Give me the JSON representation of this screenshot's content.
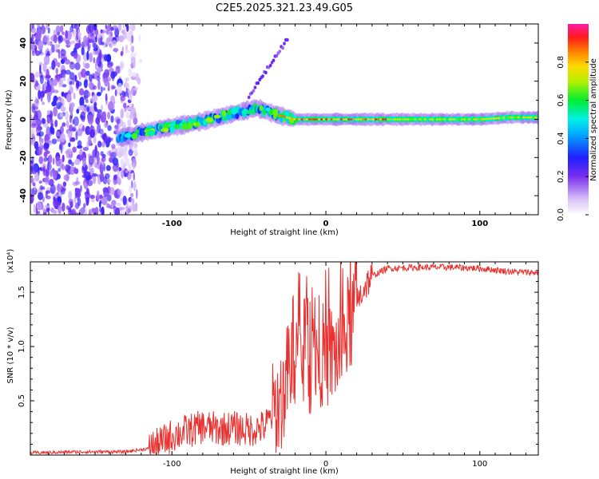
{
  "title": "C2E5.2025.321.23.49.G05",
  "chart_data": [
    {
      "type": "heatmap",
      "title": "C2E5.2025.321.23.49.G05",
      "xlabel": "Height of straight line (km)",
      "ylabel": "Frequency (Hz)",
      "xlim": [
        -192,
        138
      ],
      "ylim": [
        -50,
        50
      ],
      "xticks": [
        -100,
        0,
        100
      ],
      "yticks": [
        -40,
        -20,
        0,
        20,
        40
      ],
      "xtick_labels": [
        "-100",
        "0",
        "100"
      ],
      "ytick_labels": [
        "-40",
        "-20",
        "0",
        "20",
        "40"
      ],
      "colorbar": {
        "label": "Normalized spectral amplitude",
        "range": [
          0,
          1
        ],
        "ticks": [
          0.0,
          0.2,
          0.4,
          0.6,
          0.8
        ],
        "tick_labels": [
          "0.0",
          "0.2",
          "0.4",
          "0.6",
          "0.8"
        ]
      },
      "signal_trace": {
        "x": [
          -135,
          -120,
          -100,
          -80,
          -60,
          -45,
          -38,
          -30,
          -20,
          -10,
          0,
          20,
          50,
          80,
          100,
          120,
          138
        ],
        "y": [
          -10,
          -7,
          -4,
          -1,
          3,
          6,
          4,
          2,
          0,
          0,
          0,
          0,
          0,
          0,
          0,
          1,
          1
        ]
      },
      "noise_region_x": [
        -192,
        -120
      ]
    },
    {
      "type": "line",
      "xlabel": "Height of straight line (km)",
      "ylabel": "SNR (10 * v/v)",
      "scale_label": "(x10⁴)",
      "xlim": [
        -192,
        138
      ],
      "ylim": [
        0,
        1.78
      ],
      "xticks": [
        -100,
        0,
        100
      ],
      "yticks": [
        0.5,
        1.0,
        1.5
      ],
      "xtick_labels": [
        "-100",
        "0",
        "100"
      ],
      "ytick_labels": [
        "0.5",
        "1.0",
        "1.5"
      ],
      "series": [
        {
          "name": "SNR",
          "color": "#e8302e",
          "x": [
            -192,
            -160,
            -130,
            -115,
            -108,
            -100,
            -90,
            -80,
            -70,
            -60,
            -50,
            -40,
            -33,
            -28,
            -24,
            -20,
            -15,
            -10,
            -5,
            0,
            5,
            10,
            15,
            20,
            25,
            30,
            40,
            60,
            80,
            100,
            120,
            138
          ],
          "y": [
            0.02,
            0.03,
            0.03,
            0.06,
            0.1,
            0.18,
            0.22,
            0.26,
            0.24,
            0.25,
            0.23,
            0.26,
            0.4,
            0.55,
            0.8,
            0.95,
            0.9,
            0.85,
            0.95,
            0.9,
            0.92,
            1.0,
            1.2,
            1.4,
            1.55,
            1.65,
            1.72,
            1.73,
            1.73,
            1.72,
            1.69,
            1.68
          ]
        }
      ]
    }
  ]
}
